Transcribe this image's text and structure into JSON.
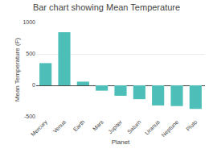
{
  "chart_data": {
    "type": "bar",
    "title": "Bar chart showing Mean Temperature",
    "xlabel": "Planet",
    "ylabel": "Mean Temperature (F)",
    "categories": [
      "Mercury",
      "Venus",
      "Earth",
      "Mars",
      "Jupiter",
      "Saturn",
      "Uranus",
      "Neptune",
      "Pluto"
    ],
    "values": [
      354,
      847,
      59,
      -85,
      -166,
      -220,
      -320,
      -330,
      -375
    ],
    "color": "#4DBFB8",
    "ylim": [
      -500,
      1000
    ],
    "yticks": [
      -500,
      0,
      500,
      1000
    ],
    "grid": true
  }
}
